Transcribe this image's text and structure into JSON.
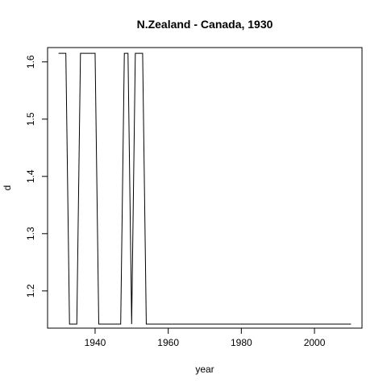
{
  "chart_data": {
    "type": "line",
    "title": "N.Zealand - Canada, 1930",
    "xlabel": "year",
    "ylabel": "d",
    "xlim": [
      1927,
      2013
    ],
    "ylim": [
      1.135,
      1.625
    ],
    "x_ticks": [
      1940,
      1960,
      1980,
      2000
    ],
    "y_ticks": [
      1.2,
      1.3,
      1.4,
      1.5,
      1.6
    ],
    "x_tick_labels": [
      "1940",
      "1960",
      "1980",
      "2000"
    ],
    "y_tick_labels": [
      "1.2",
      "1.3",
      "1.4",
      "1.5",
      "1.6"
    ],
    "grid": false,
    "legend": "none",
    "series": [
      {
        "x": [
          1930,
          1931,
          1932,
          1933,
          1934,
          1935,
          1936,
          1937,
          1938,
          1939,
          1940,
          1941,
          1942,
          1943,
          1944,
          1945,
          1946,
          1947,
          1948,
          1949,
          1950,
          1951,
          1952,
          1953,
          1954,
          1955,
          1956,
          1957,
          1958,
          1959,
          1960,
          1961,
          1962,
          1963,
          1964,
          1965,
          1966,
          1967,
          1968,
          1969,
          1970,
          1971,
          1972,
          1973,
          1974,
          1975,
          1976,
          1977,
          1978,
          1979,
          1980,
          1981,
          1982,
          1983,
          1984,
          1985,
          1986,
          1987,
          1988,
          1989,
          1990,
          1991,
          1992,
          1993,
          1994,
          1995,
          1996,
          1997,
          1998,
          1999,
          2000,
          2001,
          2002,
          2003,
          2004,
          2005,
          2006,
          2007,
          2008,
          2009,
          2010
        ],
        "y": [
          1.615,
          1.615,
          1.615,
          1.142,
          1.142,
          1.142,
          1.615,
          1.615,
          1.615,
          1.615,
          1.615,
          1.142,
          1.142,
          1.142,
          1.142,
          1.142,
          1.142,
          1.142,
          1.615,
          1.615,
          1.142,
          1.615,
          1.615,
          1.615,
          1.142,
          1.142,
          1.142,
          1.142,
          1.142,
          1.142,
          1.142,
          1.142,
          1.142,
          1.142,
          1.142,
          1.142,
          1.142,
          1.142,
          1.142,
          1.142,
          1.142,
          1.142,
          1.142,
          1.142,
          1.142,
          1.142,
          1.142,
          1.142,
          1.142,
          1.142,
          1.142,
          1.142,
          1.142,
          1.142,
          1.142,
          1.142,
          1.142,
          1.142,
          1.142,
          1.142,
          1.142,
          1.142,
          1.142,
          1.142,
          1.142,
          1.142,
          1.142,
          1.142,
          1.142,
          1.142,
          1.142,
          1.142,
          1.142,
          1.142,
          1.142,
          1.142,
          1.142,
          1.142,
          1.142,
          1.142,
          1.142
        ]
      }
    ]
  }
}
